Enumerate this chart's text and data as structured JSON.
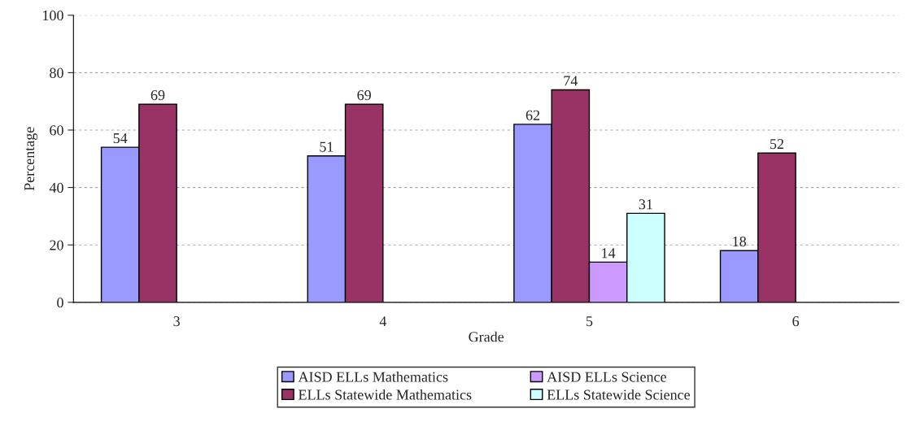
{
  "chart_data": {
    "type": "bar",
    "xlabel": "Grade",
    "ylabel": "Percentage",
    "categories": [
      "3",
      "4",
      "5",
      "6"
    ],
    "series": [
      {
        "name": "AISD ELLs Mathematics",
        "color": "#9999ff",
        "values": [
          54,
          51,
          62,
          18
        ]
      },
      {
        "name": "ELLs Statewide Mathematics",
        "color": "#993366",
        "values": [
          69,
          69,
          74,
          52
        ]
      },
      {
        "name": "AISD ELLs Science",
        "color": "#cc99ff",
        "values": [
          null,
          null,
          14,
          null
        ]
      },
      {
        "name": "ELLs Statewide Science",
        "color": "#ccffff",
        "values": [
          null,
          null,
          31,
          null
        ]
      }
    ],
    "ylim": [
      0,
      100
    ],
    "yticks": [
      0,
      20,
      40,
      60,
      80,
      100
    ],
    "grid": "y",
    "legend": "bottom",
    "data_labels": true
  }
}
